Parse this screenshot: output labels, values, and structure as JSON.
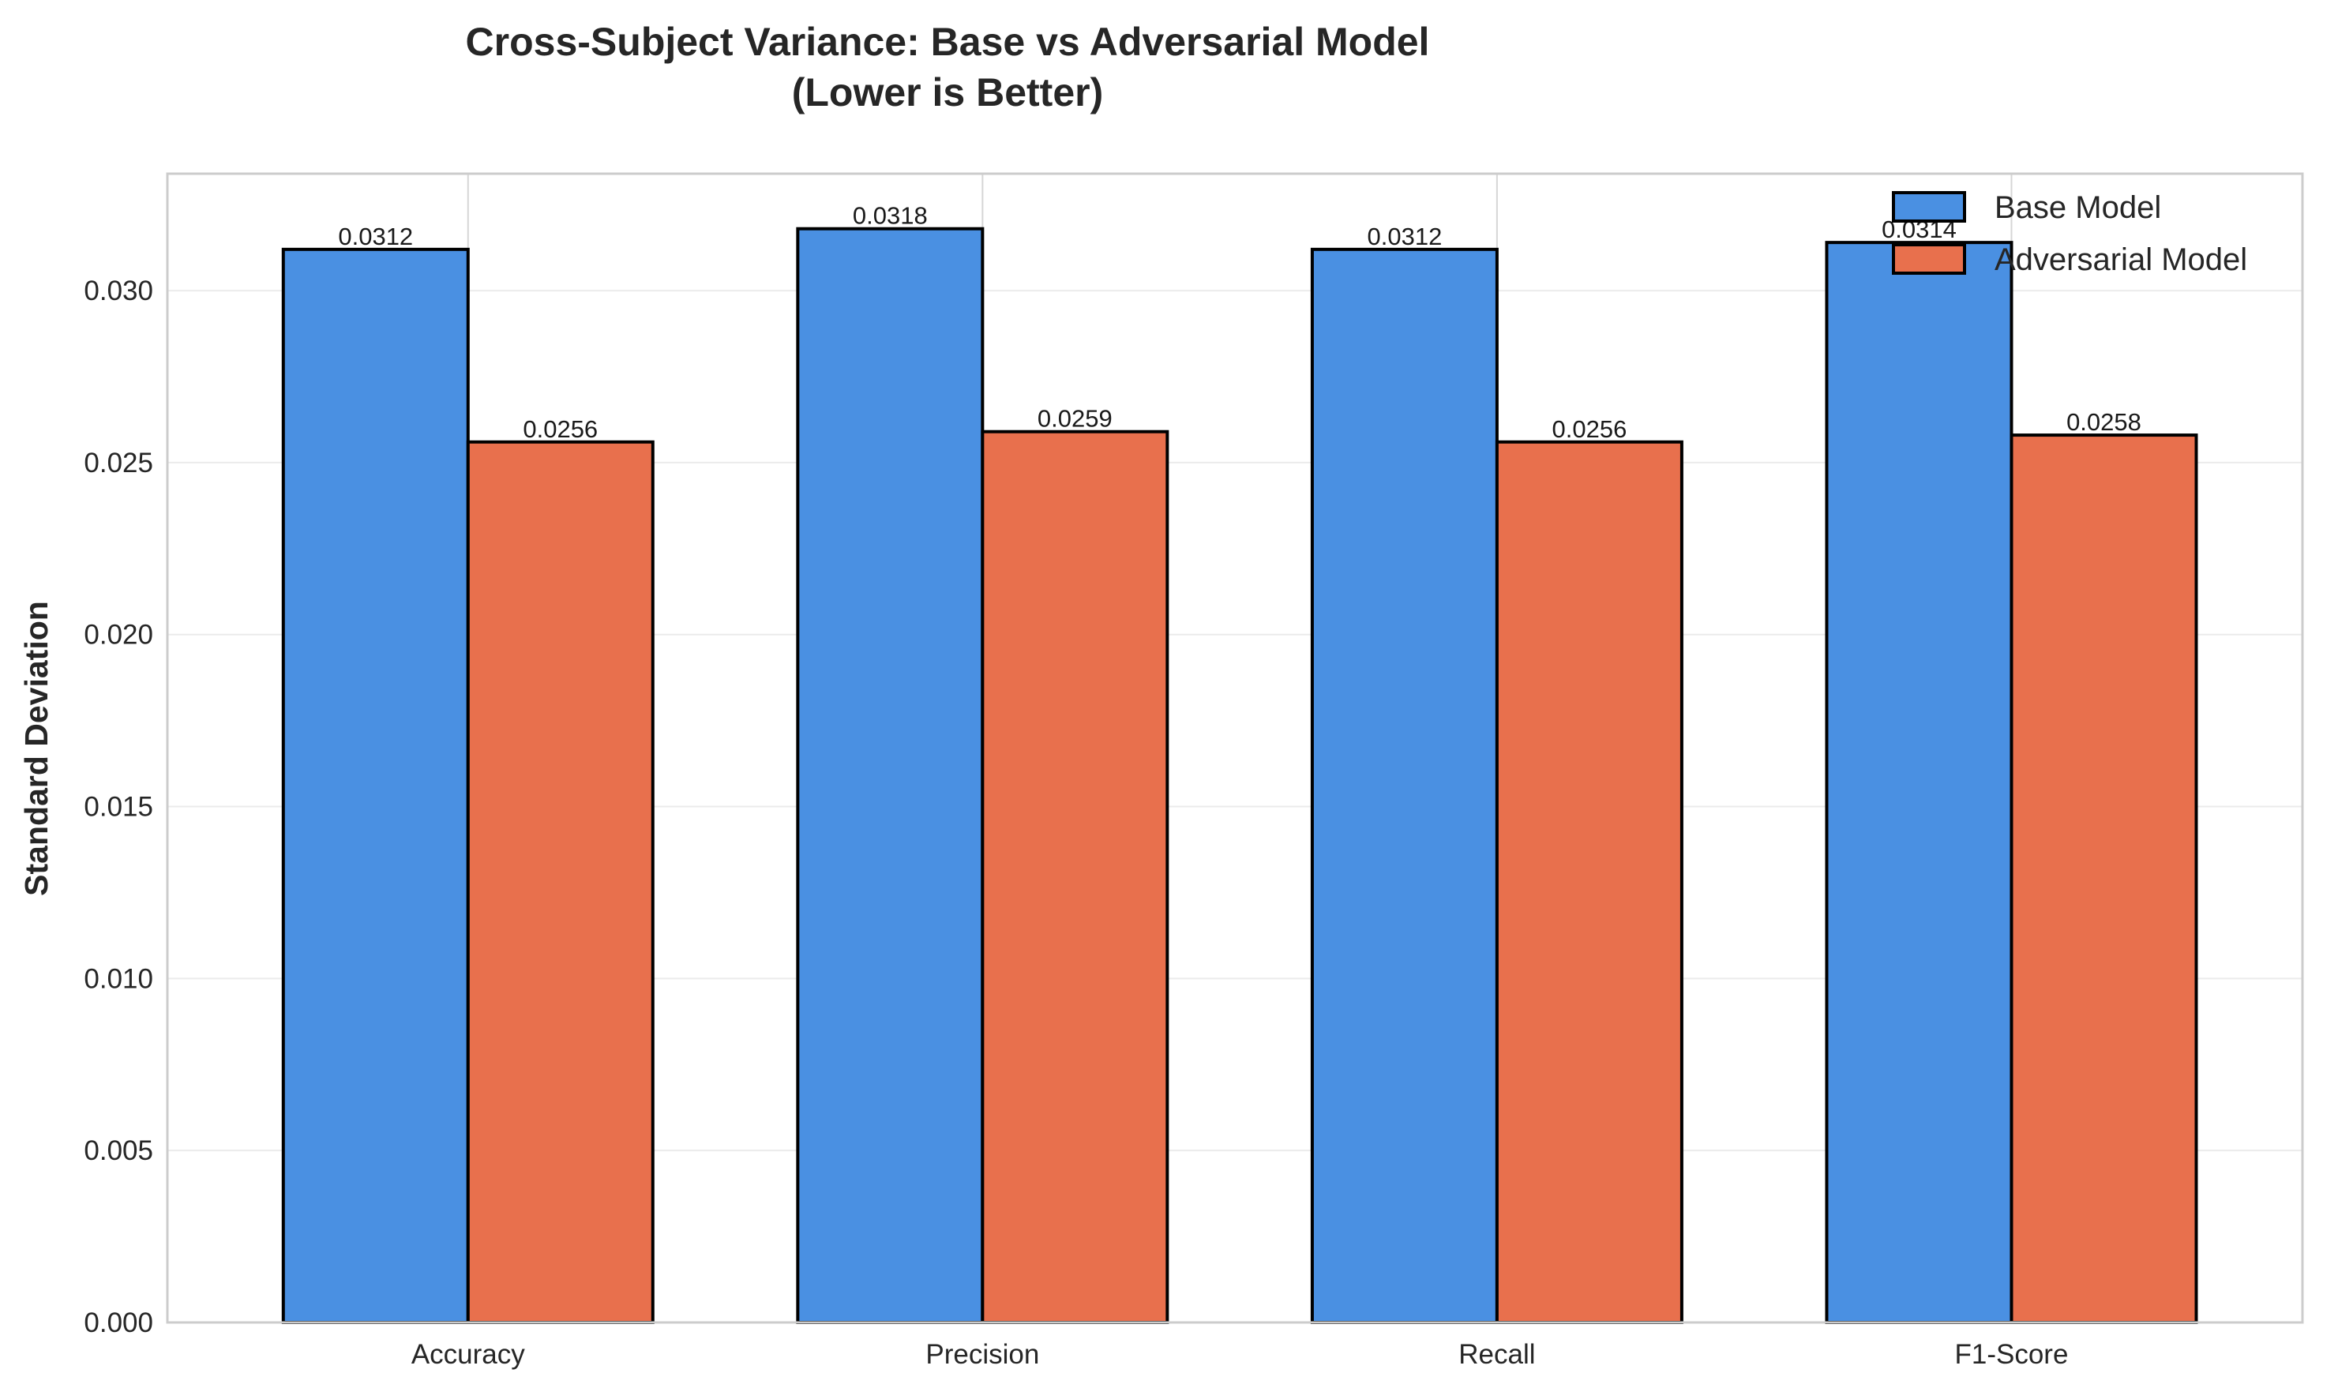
{
  "chart_data": {
    "type": "bar",
    "title": "Cross-Subject Variance: Base vs Adversarial Model",
    "subtitle": "(Lower is Better)",
    "xlabel": "",
    "ylabel": "Standard Deviation",
    "categories": [
      "Accuracy",
      "Precision",
      "Recall",
      "F1-Score"
    ],
    "series": [
      {
        "name": "Base Model",
        "color": "#4a90e2",
        "values": [
          0.0312,
          0.0318,
          0.0312,
          0.0314
        ]
      },
      {
        "name": "Adversarial Model",
        "color": "#e8704d",
        "values": [
          0.0256,
          0.0259,
          0.0256,
          0.0258
        ]
      }
    ],
    "data_labels": [
      [
        "0.0312",
        "0.0318",
        "0.0312",
        "0.0314"
      ],
      [
        "0.0256",
        "0.0259",
        "0.0256",
        "0.0258"
      ]
    ],
    "ylim": [
      0,
      0.0334
    ],
    "yticks": [
      0.0,
      0.005,
      0.01,
      0.015,
      0.02,
      0.025,
      0.03
    ],
    "ytick_labels": [
      "0.000",
      "0.005",
      "0.010",
      "0.015",
      "0.020",
      "0.025",
      "0.030"
    ],
    "grid": true,
    "legend_position": "top-right",
    "bar_edge_color": "#000000"
  }
}
